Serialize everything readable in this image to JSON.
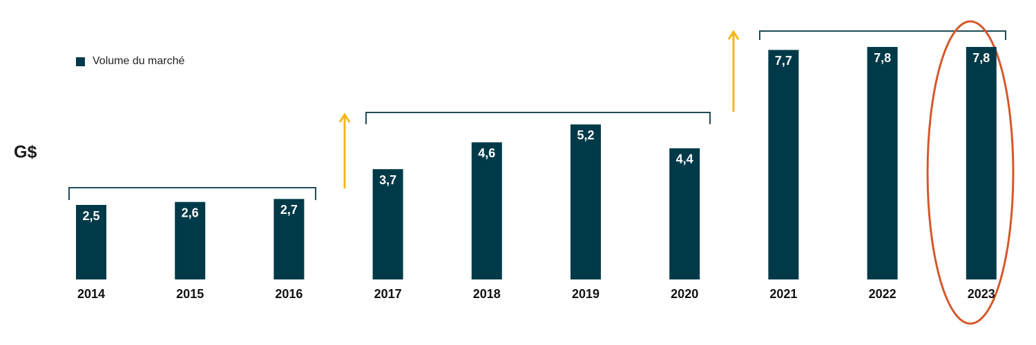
{
  "chart_data": {
    "type": "bar",
    "y_label": "G$",
    "categories": [
      "2014",
      "2015",
      "2016",
      "2017",
      "2018",
      "2019",
      "2020",
      "2021",
      "2022",
      "2023"
    ],
    "series": [
      {
        "name": "Volume du marché",
        "color": "#003a49",
        "values": [
          2.5,
          2.6,
          2.7,
          3.7,
          4.6,
          5.2,
          4.4,
          7.7,
          7.8,
          7.8
        ],
        "value_labels": [
          "2,5",
          "2,6",
          "2,7",
          "3,7",
          "4,6",
          "5,2",
          "4,4",
          "7,7",
          "7,8",
          "7,8"
        ]
      }
    ]
  }
}
